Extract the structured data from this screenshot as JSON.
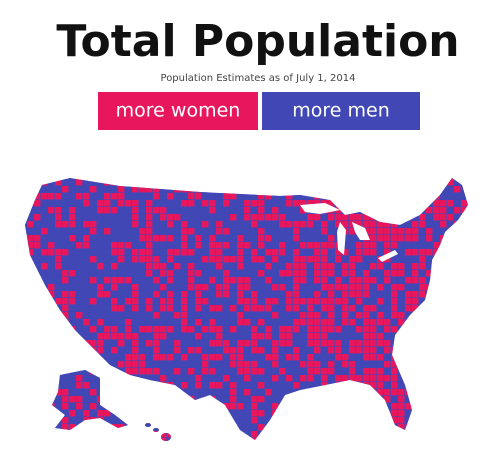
{
  "header": {
    "title": "Total Population",
    "subtitle": "Population Estimates as of July 1, 2014"
  },
  "legend": [
    {
      "label": "more women",
      "color": "#e8175d"
    },
    {
      "label": "more men",
      "color": "#4147b5"
    }
  ]
}
